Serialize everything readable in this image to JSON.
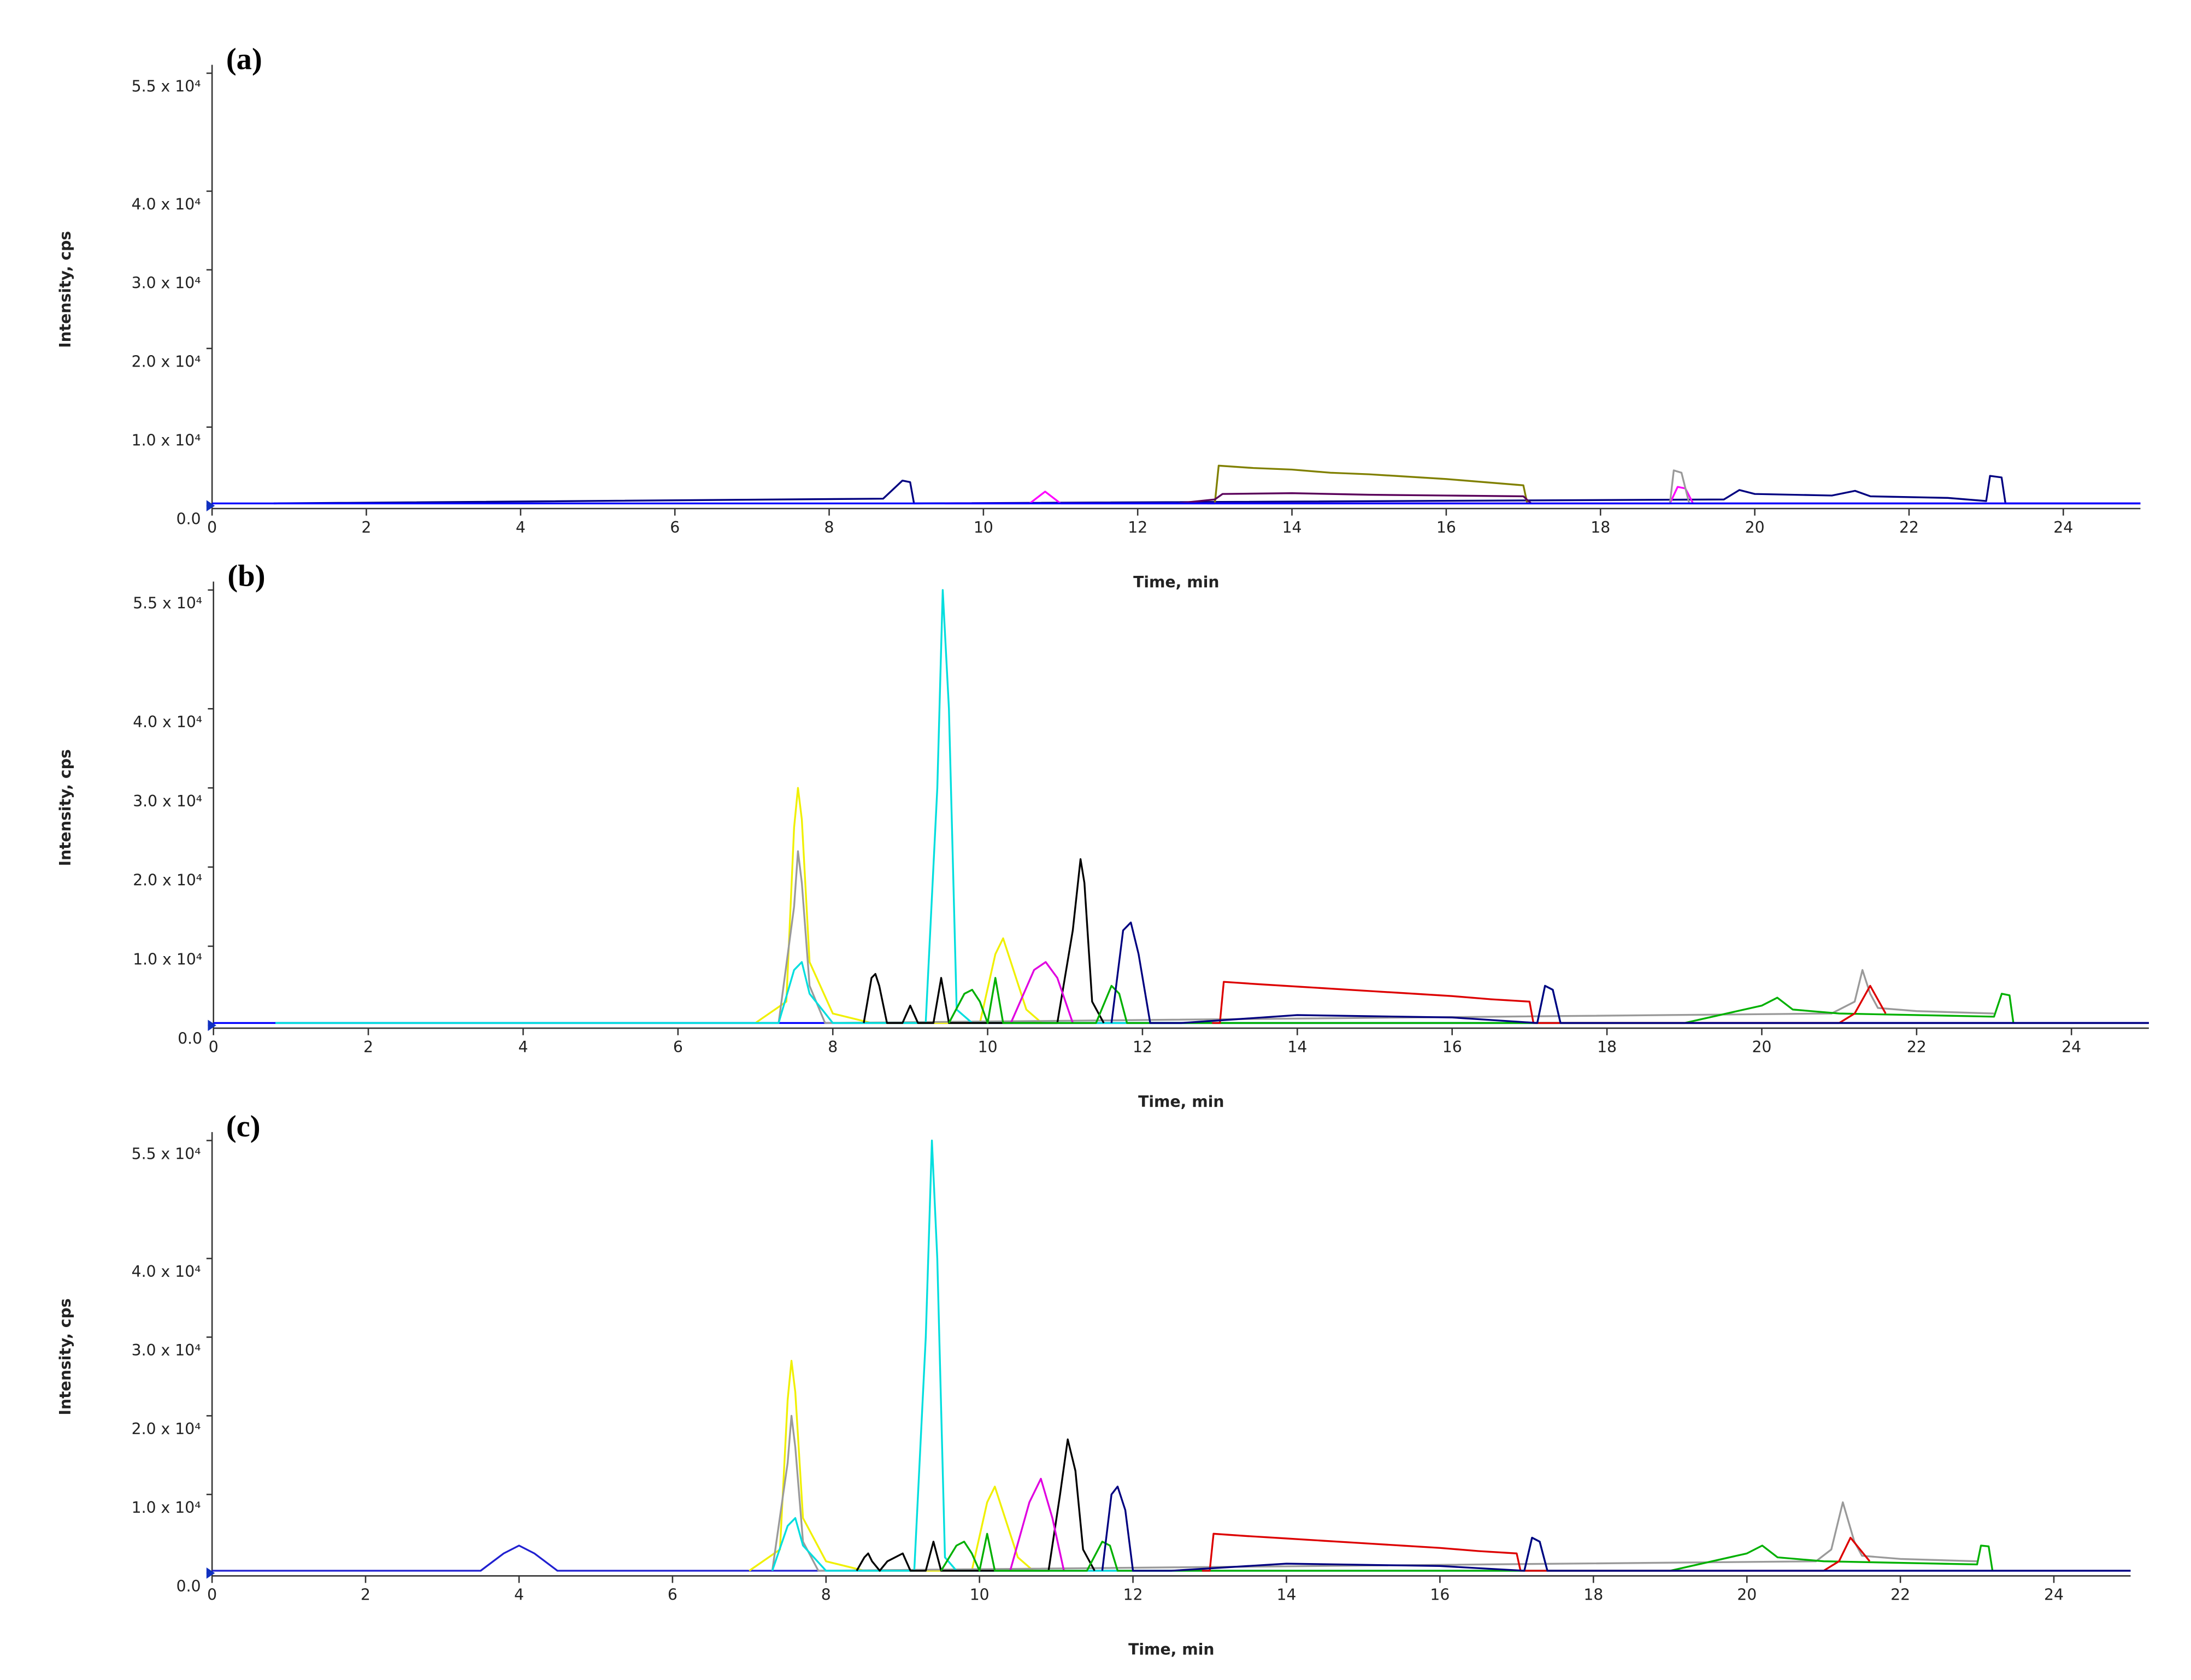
{
  "chart_data": [
    {
      "type": "line",
      "title": "(a)",
      "xlabel": "Time, min",
      "ylabel": "Intensity, cps",
      "xlim": [
        0,
        25
      ],
      "ylim": [
        0,
        55000
      ],
      "xticks": [
        0,
        2,
        4,
        6,
        8,
        10,
        12,
        14,
        16,
        18,
        20,
        22,
        24
      ],
      "yticks": [
        {
          "value": 0,
          "label": "0.0"
        },
        {
          "value": 10000,
          "label": "1.0 x 10⁴"
        },
        {
          "value": 20000,
          "label": "2.0 x 10⁴"
        },
        {
          "value": 30000,
          "label": "3.0 x 10⁴"
        },
        {
          "value": 40000,
          "label": "4.0 x 10⁴"
        },
        {
          "value": 55000,
          "label": "5.5 x 10⁴"
        }
      ],
      "series": [
        {
          "color": "#000080",
          "x": [
            0.8,
            8.7,
            8.95,
            9.05,
            9.1,
            19.6,
            19.8,
            20.0,
            21.0,
            21.3,
            21.5,
            22.5,
            23.0,
            23.05,
            23.2,
            23.25,
            25
          ],
          "values": [
            300,
            900,
            3200,
            3000,
            300,
            800,
            2000,
            1500,
            1300,
            1900,
            1200,
            1000,
            600,
            3800,
            3600,
            300,
            300
          ]
        },
        {
          "color": "#808000",
          "x": [
            12.9,
            13.0,
            13.05,
            13.5,
            14,
            14.5,
            15,
            15.5,
            16,
            16.5,
            17,
            17.05
          ],
          "values": [
            300,
            300,
            5100,
            4800,
            4600,
            4200,
            4000,
            3700,
            3400,
            3000,
            2600,
            300
          ]
        },
        {
          "color": "#ff00ff",
          "x": [
            9.5,
            10.6,
            10.8,
            11.0,
            18.9,
            19.0,
            19.1,
            19.2,
            25
          ],
          "values": [
            300,
            300,
            1800,
            300,
            300,
            2400,
            2200,
            300,
            300
          ]
        },
        {
          "color": "#9a9a9a",
          "x": [
            18.9,
            18.95,
            19.05,
            19.15,
            23.0
          ],
          "values": [
            300,
            4500,
            4200,
            300,
            300
          ]
        },
        {
          "color": "#5a005a",
          "x": [
            12.5,
            13.0,
            13.1,
            14,
            15,
            16,
            17,
            17.1
          ],
          "values": [
            300,
            800,
            1500,
            1600,
            1400,
            1300,
            1200,
            300
          ]
        },
        {
          "color": "#0000ff",
          "x": [
            0,
            25
          ],
          "values": [
            300,
            300
          ]
        }
      ]
    },
    {
      "type": "line",
      "title": "(b)",
      "xlabel": "Time, min",
      "ylabel": "Intensity, cps",
      "xlim": [
        0,
        25
      ],
      "ylim": [
        0,
        55000
      ],
      "xticks": [
        0,
        2,
        4,
        6,
        8,
        10,
        12,
        14,
        16,
        18,
        20,
        22,
        24
      ],
      "yticks": [
        {
          "value": 0,
          "label": "0.0"
        },
        {
          "value": 10000,
          "label": "1.0 x 10⁴"
        },
        {
          "value": 20000,
          "label": "2.0 x 10⁴"
        },
        {
          "value": 30000,
          "label": "3.0 x 10⁴"
        },
        {
          "value": 40000,
          "label": "4.0 x 10⁴"
        },
        {
          "value": 55000,
          "label": "5.5 x 10⁴"
        }
      ],
      "series": [
        {
          "color": "#0000ff",
          "x": [
            0,
            25
          ],
          "values": [
            300,
            300
          ]
        },
        {
          "color": "#f0f000",
          "x": [
            7.0,
            7.4,
            7.5,
            7.55,
            7.6,
            7.7,
            8.0,
            8.5,
            9.9,
            10.1,
            10.2,
            10.3,
            10.5,
            10.7
          ],
          "values": [
            300,
            3000,
            25000,
            30000,
            26000,
            8000,
            1500,
            300,
            300,
            9000,
            11000,
            8000,
            2000,
            300
          ]
        },
        {
          "color": "#9a9a9a",
          "x": [
            7.3,
            7.5,
            7.55,
            7.6,
            7.7,
            7.9,
            20.9,
            21.2,
            21.3,
            21.4,
            21.5,
            22,
            23
          ],
          "values": [
            300,
            15000,
            22000,
            18000,
            5000,
            300,
            1500,
            3000,
            7000,
            4000,
            2200,
            1800,
            1500
          ]
        },
        {
          "color": "#00dede",
          "x": [
            0.8,
            7.3,
            7.5,
            7.6,
            7.7,
            8.0,
            9.2,
            9.35,
            9.42,
            9.5,
            9.6,
            9.8,
            17.1,
            17.2,
            17.3,
            17.4
          ],
          "values": [
            300,
            300,
            7000,
            8000,
            4000,
            300,
            300,
            30000,
            55000,
            40000,
            2000,
            300,
            300,
            5000,
            4500,
            300
          ]
        },
        {
          "color": "#000000",
          "x": [
            8.4,
            8.5,
            8.55,
            8.6,
            8.7,
            8.9,
            9.0,
            9.1,
            9.3,
            9.4,
            9.5,
            10.9,
            11.1,
            11.2,
            11.25,
            11.35,
            11.5
          ],
          "values": [
            300,
            6000,
            6500,
            5000,
            300,
            300,
            2500,
            300,
            300,
            6000,
            300,
            300,
            12000,
            21000,
            18000,
            3000,
            300
          ]
        },
        {
          "color": "#e000e0",
          "x": [
            10.3,
            10.6,
            10.75,
            10.9,
            11.1
          ],
          "values": [
            300,
            7000,
            8000,
            6000,
            300
          ]
        },
        {
          "color": "#00b000",
          "x": [
            9.5,
            9.7,
            9.8,
            9.9,
            10.0,
            10.1,
            10.2,
            11.4,
            11.6,
            11.7,
            11.8,
            19.0,
            20.0,
            20.2,
            20.4,
            21.0,
            22.0,
            23.0,
            23.1,
            23.2,
            23.25
          ],
          "values": [
            300,
            4000,
            4500,
            3000,
            300,
            6000,
            300,
            300,
            5000,
            4000,
            300,
            300,
            2500,
            3500,
            2000,
            1500,
            1300,
            1100,
            4000,
            3800,
            300
          ]
        },
        {
          "color": "#dd0000",
          "x": [
            12.9,
            13.0,
            13.05,
            13.5,
            14,
            14.5,
            15,
            15.5,
            16,
            16.5,
            17,
            17.05,
            21.0,
            21.2,
            21.4,
            21.6
          ],
          "values": [
            300,
            300,
            5500,
            5200,
            4900,
            4600,
            4300,
            4000,
            3700,
            3300,
            3000,
            300,
            300,
            1500,
            5000,
            1500
          ]
        },
        {
          "color": "#000080",
          "x": [
            11.6,
            11.75,
            11.85,
            11.95,
            12.1,
            12.5,
            14,
            16,
            17.1,
            17.2,
            17.3,
            17.4,
            25
          ],
          "values": [
            300,
            12000,
            13000,
            9000,
            300,
            300,
            1300,
            1000,
            300,
            5000,
            4500,
            300,
            300
          ]
        }
      ]
    },
    {
      "type": "line",
      "title": "(c)",
      "xlabel": "Time, min",
      "ylabel": "Intensity, cps",
      "xlim": [
        0,
        25
      ],
      "ylim": [
        0,
        55000
      ],
      "xticks": [
        0,
        2,
        4,
        6,
        8,
        10,
        12,
        14,
        16,
        18,
        20,
        22,
        24
      ],
      "yticks": [
        {
          "value": 0,
          "label": "0.0"
        },
        {
          "value": 10000,
          "label": "1.0 x 10⁴"
        },
        {
          "value": 20000,
          "label": "2.0 x 10⁴"
        },
        {
          "value": 30000,
          "label": "3.0 x 10⁴"
        },
        {
          "value": 40000,
          "label": "4.0 x 10⁴"
        },
        {
          "value": 55000,
          "label": "5.5 x 10⁴"
        }
      ],
      "series": [
        {
          "color": "#2020d0",
          "x": [
            0,
            3.5,
            3.8,
            4.0,
            4.2,
            4.5,
            25
          ],
          "values": [
            300,
            300,
            2500,
            3500,
            2500,
            300,
            300
          ]
        },
        {
          "color": "#f0f000",
          "x": [
            7.0,
            7.4,
            7.5,
            7.55,
            7.6,
            7.7,
            8.0,
            8.5,
            9.9,
            10.1,
            10.2,
            10.3,
            10.5,
            10.7
          ],
          "values": [
            300,
            3000,
            22000,
            27000,
            23000,
            7000,
            1500,
            300,
            300,
            9000,
            11000,
            8000,
            2000,
            300
          ]
        },
        {
          "color": "#9a9a9a",
          "x": [
            7.3,
            7.5,
            7.55,
            7.6,
            7.7,
            7.9,
            20.9,
            21.1,
            21.25,
            21.4,
            21.5,
            22,
            23
          ],
          "values": [
            300,
            14000,
            20000,
            16000,
            4000,
            300,
            1500,
            3000,
            9000,
            4000,
            2200,
            1800,
            1500
          ]
        },
        {
          "color": "#00dede",
          "x": [
            7.3,
            7.5,
            7.6,
            7.7,
            8.0,
            9.15,
            9.3,
            9.38,
            9.45,
            9.55,
            9.7,
            17.1,
            17.2,
            17.3,
            17.4
          ],
          "values": [
            300,
            6000,
            7000,
            3500,
            300,
            300,
            30000,
            55000,
            40000,
            2000,
            300,
            300,
            4500,
            4000,
            300
          ]
        },
        {
          "color": "#000000",
          "x": [
            8.4,
            8.5,
            8.55,
            8.6,
            8.7,
            8.8,
            9.0,
            9.1,
            9.3,
            9.4,
            9.5,
            10.9,
            11.05,
            11.15,
            11.25,
            11.35,
            11.5
          ],
          "values": [
            300,
            2000,
            2500,
            1500,
            300,
            1500,
            2500,
            300,
            300,
            4000,
            300,
            300,
            10000,
            17000,
            13000,
            3000,
            300
          ]
        },
        {
          "color": "#e000e0",
          "x": [
            10.4,
            10.65,
            10.8,
            10.95,
            11.1
          ],
          "values": [
            300,
            9000,
            12000,
            7000,
            300
          ]
        },
        {
          "color": "#00b000",
          "x": [
            9.5,
            9.7,
            9.8,
            9.9,
            10.0,
            10.1,
            10.2,
            11.4,
            11.6,
            11.7,
            11.8,
            12.5,
            19.0,
            20.0,
            20.2,
            20.4,
            21.0,
            22.0,
            23.0,
            23.05,
            23.15,
            23.2
          ],
          "values": [
            300,
            3500,
            4000,
            2500,
            300,
            5000,
            300,
            300,
            4000,
            3500,
            300,
            300,
            300,
            2500,
            3500,
            2000,
            1500,
            1300,
            1100,
            3500,
            3400,
            300
          ]
        },
        {
          "color": "#dd0000",
          "x": [
            12.9,
            13.0,
            13.05,
            13.5,
            14,
            14.5,
            15,
            15.5,
            16,
            16.5,
            17,
            17.05,
            21.0,
            21.2,
            21.35,
            21.6
          ],
          "values": [
            300,
            300,
            5000,
            4700,
            4400,
            4100,
            3800,
            3500,
            3200,
            2800,
            2500,
            300,
            300,
            1500,
            4500,
            1500
          ]
        },
        {
          "color": "#000080",
          "x": [
            11.6,
            11.72,
            11.8,
            11.9,
            12.0,
            12.5,
            14,
            16,
            17.1,
            17.2,
            17.3,
            17.4,
            25
          ],
          "values": [
            300,
            10000,
            11000,
            8000,
            300,
            300,
            1200,
            900,
            300,
            4500,
            4000,
            300,
            300
          ]
        }
      ]
    }
  ]
}
